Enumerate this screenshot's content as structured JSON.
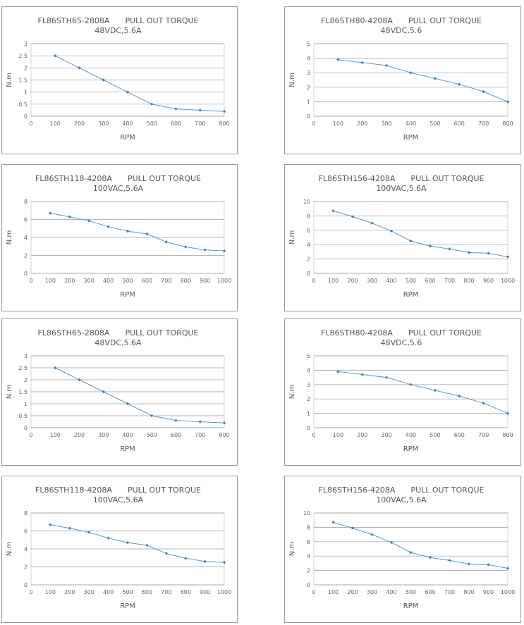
{
  "chart_data": [
    {
      "type": "line",
      "model": "FL86STH65-2808A",
      "curve": "PULL OUT TORQUE",
      "condition": "48VDC,5.6A",
      "xlabel": "RPM",
      "ylabel": "N.m",
      "xlim": [
        0,
        800
      ],
      "ylim": [
        0,
        3
      ],
      "x_ticks": [
        "0",
        "100",
        "200",
        "300",
        "400",
        "500",
        "600",
        "700",
        "800"
      ],
      "y_ticks": [
        "0",
        "0.5",
        "1",
        "1.5",
        "2",
        "2.5",
        "3"
      ],
      "x": [
        100,
        200,
        300,
        400,
        500,
        600,
        700,
        800
      ],
      "y": [
        2.5,
        2.0,
        1.5,
        1.0,
        0.5,
        0.3,
        0.25,
        0.2
      ],
      "color": "#5b97c2"
    },
    {
      "type": "line",
      "model": "FL86STH80-4208A",
      "curve": "PULL OUT TORQUE",
      "condition": "48VDC,5.6",
      "xlabel": "RPM",
      "ylabel": "N.m",
      "xlim": [
        0,
        800
      ],
      "ylim": [
        0,
        5
      ],
      "x_ticks": [
        "0",
        "100",
        "200",
        "300",
        "400",
        "500",
        "600",
        "700",
        "800"
      ],
      "y_ticks": [
        "0",
        "1",
        "2",
        "3",
        "4",
        "5"
      ],
      "x": [
        100,
        200,
        300,
        400,
        500,
        600,
        700,
        800
      ],
      "y": [
        3.9,
        3.7,
        3.5,
        3.0,
        2.6,
        2.2,
        1.7,
        1.0
      ],
      "color": "#5b97c2"
    },
    {
      "type": "line",
      "model": "FL86STH118-4208A",
      "curve": "PULL OUT TORQUE",
      "condition": "100VAC,5.6A",
      "xlabel": "RPM",
      "ylabel": "N.m",
      "xlim": [
        0,
        1000
      ],
      "ylim": [
        0,
        8
      ],
      "x_ticks": [
        "0",
        "100",
        "200",
        "300",
        "400",
        "500",
        "600",
        "700",
        "800",
        "900",
        "1000"
      ],
      "y_ticks": [
        "0",
        "2",
        "4",
        "6",
        "8"
      ],
      "x": [
        100,
        200,
        300,
        400,
        500,
        600,
        700,
        800,
        900,
        1000
      ],
      "y": [
        6.7,
        6.3,
        5.85,
        5.2,
        4.7,
        4.4,
        3.5,
        2.95,
        2.6,
        2.5
      ],
      "color": "#5b97c2"
    },
    {
      "type": "line",
      "model": "FL86STH156-4208A",
      "curve": "PULL OUT TORQUE",
      "condition": "100VAC,5.6A",
      "xlabel": "RPM",
      "ylabel": "N.m",
      "xlim": [
        0,
        1000
      ],
      "ylim": [
        0,
        10
      ],
      "x_ticks": [
        "0",
        "100",
        "200",
        "300",
        "400",
        "500",
        "600",
        "700",
        "800",
        "900",
        "1000"
      ],
      "y_ticks": [
        "0",
        "2",
        "4",
        "6",
        "8",
        "10"
      ],
      "x": [
        100,
        200,
        300,
        400,
        500,
        600,
        700,
        800,
        900,
        1000
      ],
      "y": [
        8.7,
        7.9,
        7.0,
        5.9,
        4.5,
        3.8,
        3.4,
        2.9,
        2.8,
        2.3
      ],
      "color": "#5b97c2"
    },
    {
      "type": "line",
      "model": "FL86STH65-2808A",
      "curve": "PULL OUT TORQUE",
      "condition": "48VDC,5.6A",
      "xlabel": "RPM",
      "ylabel": "N.m",
      "xlim": [
        0,
        800
      ],
      "ylim": [
        0,
        3
      ],
      "x_ticks": [
        "0",
        "100",
        "200",
        "300",
        "400",
        "500",
        "600",
        "700",
        "800"
      ],
      "y_ticks": [
        "0",
        "0.5",
        "1",
        "1.5",
        "2",
        "2.5",
        "3"
      ],
      "x": [
        100,
        200,
        300,
        400,
        500,
        600,
        700,
        800
      ],
      "y": [
        2.5,
        2.0,
        1.5,
        1.0,
        0.5,
        0.3,
        0.25,
        0.2
      ],
      "color": "#5b97c2"
    },
    {
      "type": "line",
      "model": "FL86STH80-4208A",
      "curve": "PULL OUT TORQUE",
      "condition": "48VDC,5.6",
      "xlabel": "RPM",
      "ylabel": "N.m",
      "xlim": [
        0,
        800
      ],
      "ylim": [
        0,
        5
      ],
      "x_ticks": [
        "0",
        "100",
        "200",
        "300",
        "400",
        "500",
        "600",
        "700",
        "800"
      ],
      "y_ticks": [
        "0",
        "1",
        "2",
        "3",
        "4",
        "5"
      ],
      "x": [
        100,
        200,
        300,
        400,
        500,
        600,
        700,
        800
      ],
      "y": [
        3.9,
        3.7,
        3.5,
        3.0,
        2.6,
        2.2,
        1.7,
        1.0
      ],
      "color": "#5b97c2"
    },
    {
      "type": "line",
      "model": "FL86STH118-4208A",
      "curve": "PULL OUT TORQUE",
      "condition": "100VAC,5.6A",
      "xlabel": "RPM",
      "ylabel": "N.m",
      "xlim": [
        0,
        1000
      ],
      "ylim": [
        0,
        8
      ],
      "x_ticks": [
        "0",
        "100",
        "200",
        "300",
        "400",
        "500",
        "600",
        "700",
        "800",
        "900",
        "1000"
      ],
      "y_ticks": [
        "0",
        "2",
        "4",
        "6",
        "8"
      ],
      "x": [
        100,
        200,
        300,
        400,
        500,
        600,
        700,
        800,
        900,
        1000
      ],
      "y": [
        6.7,
        6.3,
        5.85,
        5.2,
        4.7,
        4.4,
        3.5,
        2.95,
        2.6,
        2.5
      ],
      "color": "#5b97c2"
    },
    {
      "type": "line",
      "model": "FL86STH156-4208A",
      "curve": "PULL OUT TORQUE",
      "condition": "100VAC,5.6A",
      "xlabel": "RPM",
      "ylabel": "N.m",
      "xlim": [
        0,
        1000
      ],
      "ylim": [
        0,
        10
      ],
      "x_ticks": [
        "0",
        "100",
        "200",
        "300",
        "400",
        "500",
        "600",
        "700",
        "800",
        "900",
        "1000"
      ],
      "y_ticks": [
        "0",
        "2",
        "4",
        "6",
        "8",
        "10"
      ],
      "x": [
        100,
        200,
        300,
        400,
        500,
        600,
        700,
        800,
        900,
        1000
      ],
      "y": [
        8.7,
        7.9,
        7.0,
        5.9,
        4.5,
        3.8,
        3.4,
        2.9,
        2.8,
        2.3
      ],
      "color": "#5b97c2"
    }
  ]
}
